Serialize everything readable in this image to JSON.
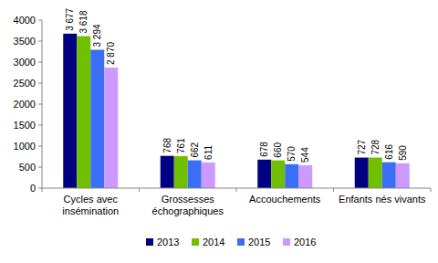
{
  "chart_data": {
    "type": "bar",
    "categories": [
      "Cycles avec insémination",
      "Grossesses échographiques",
      "Accouchements",
      "Enfants nés vivants"
    ],
    "series": [
      {
        "name": "2013",
        "color": "#000080",
        "values": [
          3677,
          768,
          678,
          727
        ],
        "value_labels": [
          "3 677",
          "768",
          "678",
          "727"
        ]
      },
      {
        "name": "2014",
        "color": "#70c000",
        "values": [
          3618,
          761,
          660,
          728
        ],
        "value_labels": [
          "3 618",
          "761",
          "660",
          "728"
        ]
      },
      {
        "name": "2015",
        "color": "#3a6ef5",
        "values": [
          3294,
          662,
          570,
          616
        ],
        "value_labels": [
          "3 294",
          "662",
          "570",
          "616"
        ]
      },
      {
        "name": "2016",
        "color": "#cc99ff",
        "values": [
          2870,
          611,
          544,
          590
        ],
        "value_labels": [
          "2 870",
          "611",
          "544",
          "590"
        ]
      }
    ],
    "ylim": [
      0,
      4000
    ],
    "yticks": [
      0,
      500,
      1000,
      1500,
      2000,
      2500,
      3000,
      3500,
      4000
    ],
    "grid": false,
    "legend": "bottom",
    "data_labels": true
  }
}
